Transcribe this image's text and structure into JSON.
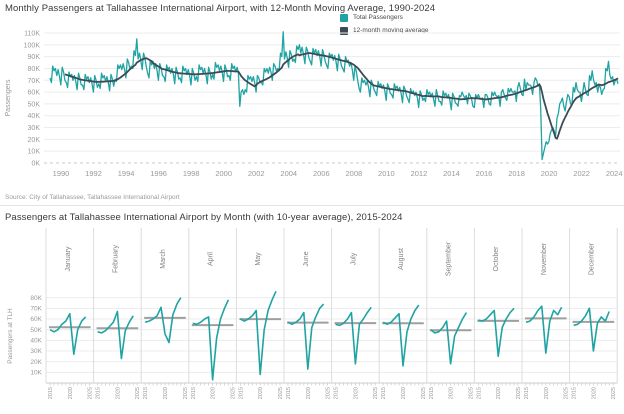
{
  "source": "Source: City of Tallahassee, Tallahassee International Airport",
  "colors": {
    "teal": "#1fa3a3",
    "dark_slate": "#3d4a55",
    "average_gray": "#9f9f9f",
    "grid": "#ececec",
    "axis_text": "#999999",
    "month_label": "#808080",
    "divider": "#e3e3e3"
  },
  "chart_data": [
    {
      "type": "line",
      "title": "Monthly Passengers at Tallahassee International Airport, with 12-Month Moving Average, 1990-2024",
      "ylabel": "Passengers",
      "xlabel": "",
      "legend": [
        "Total Passengers",
        "12-month moving average"
      ],
      "legend_position": "top-right",
      "grid": "horizontal",
      "ylim_thousands": [
        0,
        110
      ],
      "y_tick_values": [
        0,
        10,
        20,
        30,
        40,
        50,
        60,
        70,
        80,
        90,
        100,
        110
      ],
      "y_tick_labels": [
        "0K",
        "10K",
        "20K",
        "30K",
        "40K",
        "50K",
        "60K",
        "70K",
        "80K",
        "90K",
        "100K",
        "110K"
      ],
      "x_tick_labels": [
        "1990",
        "1992",
        "1994",
        "1996",
        "1998",
        "2000",
        "2002",
        "2004",
        "2006",
        "2008",
        "2010",
        "2012",
        "2014",
        "2016",
        "2018",
        "2020",
        "2022",
        "2024"
      ],
      "series": [
        {
          "name": "Total Passengers",
          "color": "#1fa3a3",
          "unit": "thousands of passengers",
          "start": "1990-01",
          "frequency": "monthly",
          "values": [
            72,
            68,
            82,
            78,
            80,
            74,
            79,
            73,
            66,
            81,
            77,
            70,
            68,
            64,
            77,
            73,
            75,
            70,
            74,
            69,
            62,
            76,
            72,
            66,
            66,
            62,
            75,
            71,
            73,
            68,
            72,
            67,
            60,
            74,
            70,
            64,
            67,
            63,
            76,
            72,
            74,
            69,
            73,
            68,
            61,
            75,
            71,
            65,
            71,
            69,
            83,
            80,
            83,
            79,
            84,
            79,
            72,
            88,
            85,
            79,
            82,
            80,
            95,
            91,
            105,
            88,
            93,
            87,
            79,
            93,
            89,
            82,
            76,
            72,
            87,
            83,
            86,
            80,
            84,
            78,
            70,
            84,
            80,
            74,
            73,
            69,
            83,
            79,
            81,
            76,
            80,
            75,
            67,
            81,
            77,
            71,
            72,
            68,
            82,
            78,
            80,
            75,
            79,
            74,
            66,
            80,
            76,
            70,
            73,
            69,
            83,
            79,
            81,
            76,
            80,
            75,
            67,
            81,
            77,
            71,
            75,
            71,
            85,
            81,
            83,
            78,
            82,
            77,
            69,
            83,
            79,
            73,
            74,
            70,
            84,
            80,
            82,
            77,
            81,
            76,
            48,
            60,
            62,
            58,
            62,
            60,
            74,
            71,
            73,
            69,
            73,
            68,
            60,
            74,
            72,
            68,
            68,
            66,
            80,
            77,
            80,
            76,
            81,
            77,
            70,
            84,
            82,
            78,
            80,
            78,
            93,
            90,
            111,
            88,
            94,
            89,
            81,
            95,
            92,
            86,
            88,
            85,
            99,
            96,
            100,
            93,
            98,
            92,
            84,
            98,
            95,
            89,
            86,
            83,
            97,
            93,
            96,
            91,
            95,
            90,
            82,
            96,
            92,
            86,
            83,
            80,
            93,
            90,
            92,
            87,
            91,
            86,
            78,
            92,
            88,
            82,
            80,
            77,
            90,
            86,
            87,
            82,
            85,
            79,
            70,
            82,
            77,
            70,
            63,
            60,
            72,
            68,
            70,
            66,
            69,
            64,
            56,
            70,
            67,
            62,
            60,
            57,
            69,
            65,
            67,
            63,
            66,
            61,
            53,
            67,
            64,
            59,
            58,
            55,
            67,
            63,
            65,
            61,
            64,
            59,
            51,
            65,
            62,
            57,
            54,
            51,
            63,
            59,
            61,
            57,
            60,
            55,
            47,
            61,
            58,
            53,
            55,
            52,
            62,
            58,
            60,
            56,
            59,
            54,
            48,
            62,
            57,
            52,
            52,
            49,
            61,
            57,
            59,
            55,
            58,
            53,
            45,
            59,
            56,
            51,
            50,
            48,
            57,
            56,
            60,
            57,
            55,
            57,
            50,
            59,
            57,
            54,
            48,
            47,
            58,
            55,
            58,
            55,
            54,
            55,
            47,
            58,
            58,
            55,
            50,
            49,
            60,
            57,
            60,
            57,
            56,
            57,
            48,
            60,
            62,
            58,
            55,
            53,
            63,
            60,
            63,
            60,
            60,
            61,
            52,
            64,
            68,
            63,
            58,
            57,
            71,
            62,
            68,
            66,
            66,
            65,
            58,
            68,
            72,
            70,
            65,
            67,
            46,
            3,
            8,
            13,
            18,
            16,
            18,
            25,
            28,
            30,
            27,
            23,
            38,
            42,
            50,
            52,
            55,
            48,
            44,
            52,
            58,
            56,
            50,
            49,
            64,
            60,
            68,
            62,
            60,
            60,
            52,
            60,
            68,
            62,
            58,
            57,
            74,
            70,
            78,
            70,
            66,
            68,
            60,
            66,
            64,
            58,
            62,
            63,
            80,
            78,
            86,
            74,
            71,
            73,
            66,
            70,
            71,
            67
          ]
        },
        {
          "name": "12-month moving average",
          "color": "#3d4a55",
          "derived": "trailing 12-month mean of Total Passengers"
        }
      ]
    },
    {
      "type": "line-small-multiples",
      "title": "Passengers at Tallahassee International Airport by Month (with 10-year average),  2015-2024",
      "ylabel": "Passengers at TLH",
      "avg_line": "10-year average",
      "x_years": [
        2015,
        2016,
        2017,
        2018,
        2019,
        2020,
        2021,
        2022,
        2023,
        2024
      ],
      "x_tick_labels": [
        "2015",
        "2020",
        "2025"
      ],
      "x_tick_offsets": [
        0,
        5,
        10
      ],
      "y_tick_values": [
        10,
        20,
        30,
        40,
        50,
        60,
        70,
        80
      ],
      "y_tick_labels": [
        "10K",
        "20K",
        "30K",
        "40K",
        "50K",
        "60K",
        "70K",
        "80K"
      ],
      "unit": "thousands of passengers",
      "panels": [
        {
          "month": "January",
          "values": [
            50,
            48,
            50,
            55,
            58,
            65,
            27,
            50,
            58,
            62
          ]
        },
        {
          "month": "February",
          "values": [
            48,
            47,
            49,
            53,
            57,
            67,
            23,
            49,
            57,
            63
          ]
        },
        {
          "month": "March",
          "values": [
            57,
            58,
            60,
            63,
            71,
            46,
            38,
            64,
            74,
            80
          ]
        },
        {
          "month": "April",
          "values": [
            56,
            55,
            57,
            60,
            62,
            3,
            42,
            60,
            70,
            78
          ]
        },
        {
          "month": "May",
          "values": [
            60,
            58,
            60,
            63,
            68,
            8,
            50,
            68,
            78,
            86
          ]
        },
        {
          "month": "June",
          "values": [
            57,
            55,
            57,
            60,
            66,
            13,
            52,
            62,
            70,
            74
          ]
        },
        {
          "month": "July",
          "values": [
            55,
            54,
            56,
            60,
            66,
            18,
            55,
            60,
            66,
            71
          ]
        },
        {
          "month": "August",
          "values": [
            57,
            55,
            57,
            61,
            65,
            16,
            48,
            60,
            68,
            73
          ]
        },
        {
          "month": "September",
          "values": [
            50,
            47,
            48,
            52,
            58,
            18,
            44,
            52,
            60,
            66
          ]
        },
        {
          "month": "October",
          "values": [
            59,
            58,
            60,
            64,
            68,
            25,
            52,
            60,
            66,
            70
          ]
        },
        {
          "month": "November",
          "values": [
            57,
            58,
            62,
            68,
            72,
            28,
            58,
            68,
            64,
            71
          ]
        },
        {
          "month": "December",
          "values": [
            54,
            55,
            58,
            63,
            70,
            30,
            56,
            62,
            58,
            67
          ]
        }
      ]
    }
  ]
}
